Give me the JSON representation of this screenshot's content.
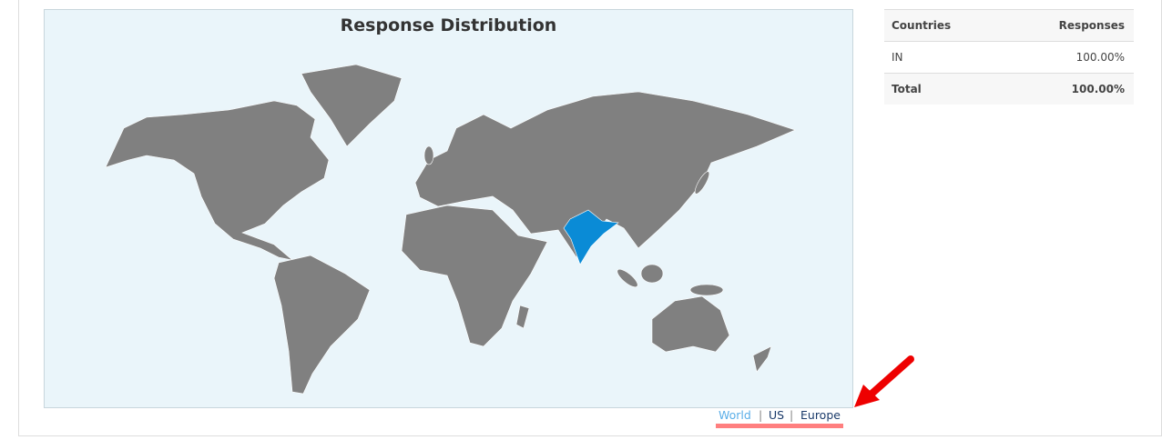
{
  "map": {
    "title": "Response Distribution",
    "highlighted_country": "IN",
    "land_color": "#808080",
    "highlight_color": "#0a8bd6",
    "ocean_color": "#eaf5fa"
  },
  "map_links": [
    {
      "label": "World",
      "active": true
    },
    {
      "label": "US"
    },
    {
      "label": "Europe"
    }
  ],
  "table": {
    "headers": [
      "Countries",
      "Responses"
    ],
    "rows": [
      {
        "country": "IN",
        "responses": "100.00%"
      }
    ],
    "total": {
      "label": "Total",
      "value": "100.00%"
    }
  }
}
